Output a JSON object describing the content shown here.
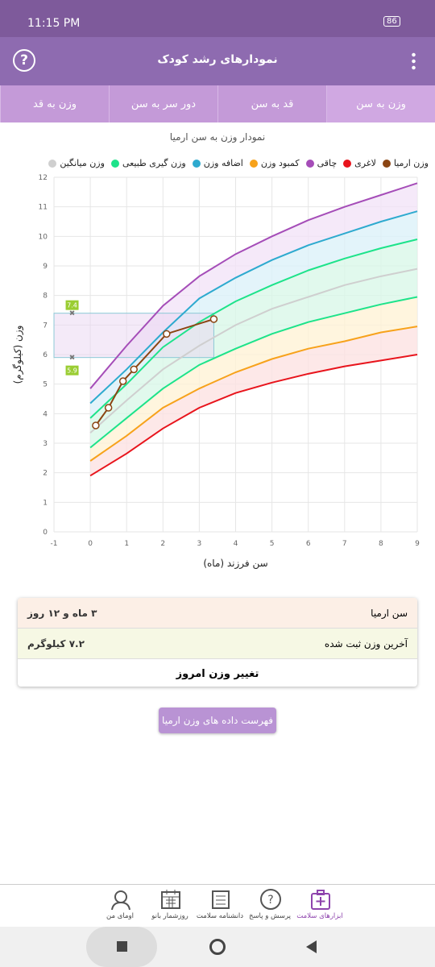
{
  "status_bar": {
    "time": "11:15 PM",
    "battery": "86"
  },
  "header": {
    "title": "نمودارهای رشد کودک",
    "help": "?"
  },
  "tabs": [
    "وزن به سن",
    "قد به سن",
    "دور سر به سن",
    "وزن به قد"
  ],
  "chart_data": {
    "type": "line",
    "title": "نمودار وزن به سن ارمیا",
    "x_label": "سن فرزند (ماه)",
    "y_label": "وزن (کیلوگرم)",
    "x": [
      0,
      1,
      2,
      3,
      4,
      5,
      6,
      7,
      8,
      9
    ],
    "series": [
      {
        "name": "وزن ارمیا",
        "color": "#8b4513",
        "x": [
          0.15,
          0.5,
          0.9,
          1.2,
          2.1,
          3.4
        ],
        "values": [
          3.6,
          4.2,
          5.1,
          5.5,
          6.7,
          7.2
        ]
      },
      {
        "name": "لاغری",
        "color": "#e8141c",
        "values": [
          1.9,
          2.65,
          3.5,
          4.2,
          4.7,
          5.05,
          5.35,
          5.6,
          5.8,
          6.0
        ]
      },
      {
        "name": "چاقی",
        "color": "#a54db8",
        "values": [
          4.85,
          6.3,
          7.65,
          8.65,
          9.4,
          10.0,
          10.55,
          11.0,
          11.4,
          11.8
        ]
      },
      {
        "name": "کمبود وزن",
        "color": "#f7a21b",
        "values": [
          2.4,
          3.25,
          4.2,
          4.85,
          5.4,
          5.85,
          6.2,
          6.45,
          6.75,
          6.95
        ]
      },
      {
        "name": "اضافه وزن",
        "color": "#2eaacf",
        "values": [
          4.35,
          5.5,
          6.75,
          7.9,
          8.6,
          9.2,
          9.7,
          10.1,
          10.5,
          10.85
        ]
      },
      {
        "name": "وزن گیری طبیعی",
        "color": "#1de38a",
        "values": [
          2.85,
          3.85,
          4.85,
          5.65,
          6.2,
          6.7,
          7.1,
          7.4,
          7.7,
          7.95
        ],
        "upper": [
          3.85,
          5.0,
          6.25,
          7.1,
          7.8,
          8.35,
          8.85,
          9.25,
          9.6,
          9.9
        ]
      },
      {
        "name": "وزن میانگین",
        "color": "#cfcfcf",
        "values": [
          3.35,
          4.45,
          5.5,
          6.3,
          7.0,
          7.55,
          7.95,
          8.35,
          8.65,
          8.9
        ]
      }
    ],
    "reference_range": [
      5.9,
      7.4
    ],
    "xlim": [
      -1,
      9
    ],
    "xticks": [
      -1,
      0,
      1,
      2,
      3,
      4,
      5,
      6,
      7,
      8,
      9
    ],
    "ylim": [
      0,
      12
    ],
    "yticks": [
      0,
      1,
      2,
      3,
      4,
      5,
      6,
      7,
      8,
      9,
      10,
      11,
      12
    ],
    "grid": true
  },
  "info_card": {
    "rows": [
      {
        "label": "سن ارمیا",
        "value": "۳ ماه و ۱۲ روز"
      },
      {
        "label": "آخرین وزن ثبت شده",
        "value": "۷.۲ کیلوگرم"
      }
    ],
    "action": "تغییر وزن امروز"
  },
  "list_button": "فهرست داده های وزن ارمیا",
  "bottom_nav": [
    "ابزارهای سلامت",
    "پرسش و پاسخ",
    "دانشنامه سلامت",
    "روزشمار بانو",
    "اومای من"
  ]
}
